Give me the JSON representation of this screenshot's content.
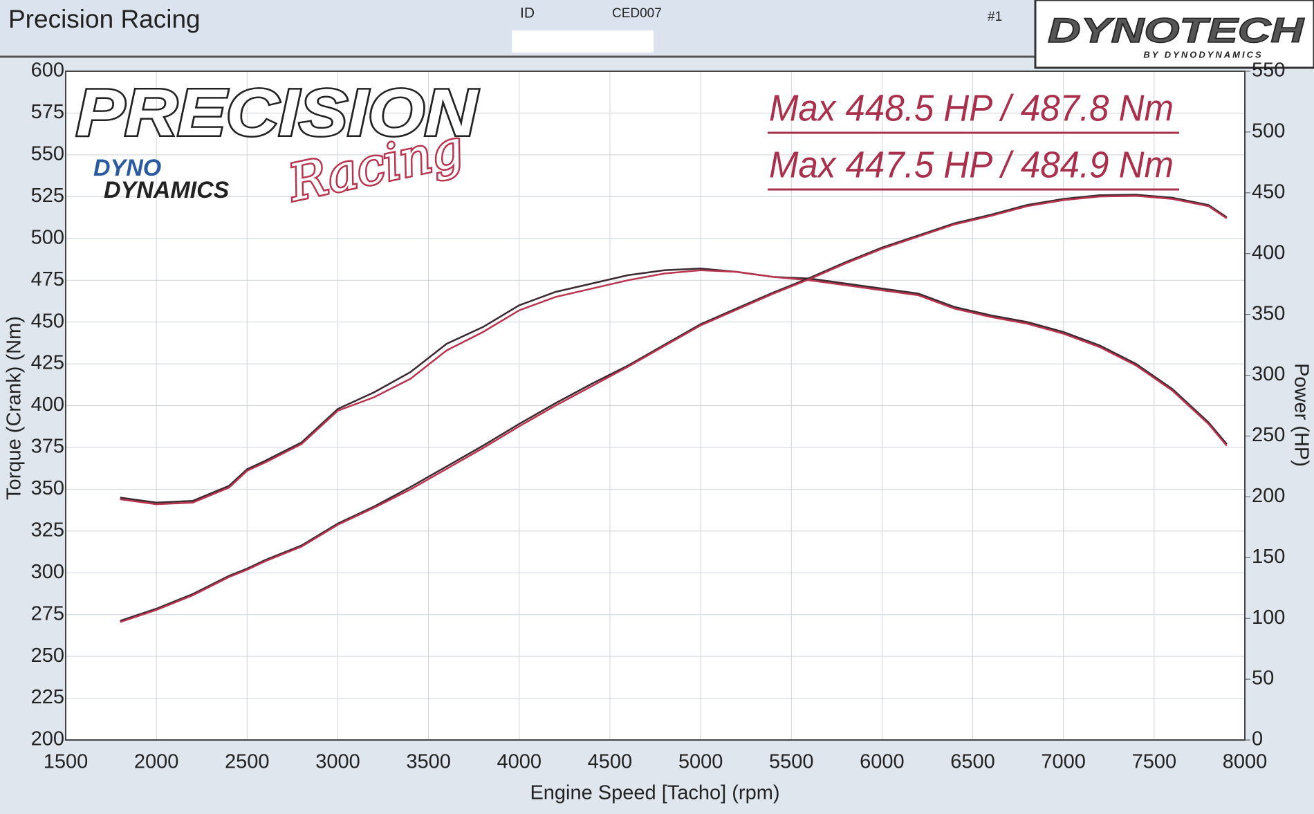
{
  "header": {
    "title": "Precision Racing",
    "id_label": "ID",
    "id_value": "CED007",
    "run": "#1",
    "brand": "DYNOTECH",
    "brand_sub": "BY DYNODYNAMICS"
  },
  "logo": {
    "main": "PRECISION",
    "script": "Racing",
    "sub1": "DYNO",
    "sub2": "DYNAMICS"
  },
  "chart_data": {
    "type": "line",
    "annotations": [
      "Max 448.5 HP  / 487.8 Nm",
      "Max 447.5 HP  / 484.9 Nm"
    ],
    "xlabel": "Engine Speed [Tacho] (rpm)",
    "ylabel": "Torque (Crank) (Nm)",
    "y2label": "Power (HP)",
    "x": [
      1800,
      2000,
      2200,
      2400,
      2500,
      2600,
      2800,
      3000,
      3200,
      3400,
      3600,
      3800,
      4000,
      4200,
      4400,
      4600,
      4800,
      5000,
      5200,
      5400,
      5600,
      5800,
      6000,
      6200,
      6400,
      6600,
      6800,
      7000,
      7200,
      7400,
      7600,
      7800,
      7900
    ],
    "series": [
      {
        "color": "#3a2a30",
        "values": [
          345,
          342,
          343,
          352,
          362,
          367,
          378,
          398,
          408,
          420,
          437,
          447,
          460,
          468,
          473,
          478,
          481,
          482,
          480,
          477,
          476,
          473,
          470,
          467,
          459,
          454,
          450,
          444,
          436,
          425,
          410,
          390,
          377
        ]
      },
      {
        "color": "#b8344f",
        "values": [
          344,
          341,
          342,
          351,
          361,
          366,
          377,
          397,
          405,
          416,
          433,
          444,
          457,
          465,
          470,
          475,
          479,
          481,
          480,
          477,
          475,
          472,
          469,
          466,
          458,
          453,
          449,
          443,
          435,
          424,
          409,
          389,
          376
        ]
      },
      {
        "color": "#3a2a30",
        "axis": "y2",
        "values": [
          98,
          108,
          120,
          135,
          141,
          148,
          160,
          178,
          192,
          208,
          225,
          242,
          260,
          277,
          293,
          308,
          325,
          342,
          355,
          368,
          380,
          393,
          405,
          415,
          425,
          432,
          440,
          445,
          448,
          448.5,
          446,
          440,
          430
        ]
      },
      {
        "color": "#b8344f",
        "axis": "y2",
        "values": [
          97,
          107,
          119,
          134,
          140,
          147,
          159,
          177,
          191,
          206,
          223,
          240,
          258,
          275,
          291,
          307,
          324,
          341,
          354,
          367,
          379,
          392,
          404,
          414,
          424,
          431,
          439,
          444,
          447,
          447.5,
          445,
          439,
          429
        ]
      }
    ],
    "xlim": [
      1500,
      8000
    ],
    "xticks": [
      1500,
      2000,
      2500,
      3000,
      3500,
      4000,
      4500,
      5000,
      5500,
      6000,
      6500,
      7000,
      7500,
      8000
    ],
    "ylim": [
      200,
      600
    ],
    "yticks": [
      200,
      225,
      250,
      275,
      300,
      325,
      350,
      375,
      400,
      425,
      450,
      475,
      500,
      525,
      550,
      575,
      600
    ],
    "y2lim": [
      0,
      550
    ],
    "y2ticks": [
      0,
      50,
      100,
      150,
      200,
      250,
      300,
      350,
      400,
      450,
      500,
      550
    ],
    "grid": true
  }
}
